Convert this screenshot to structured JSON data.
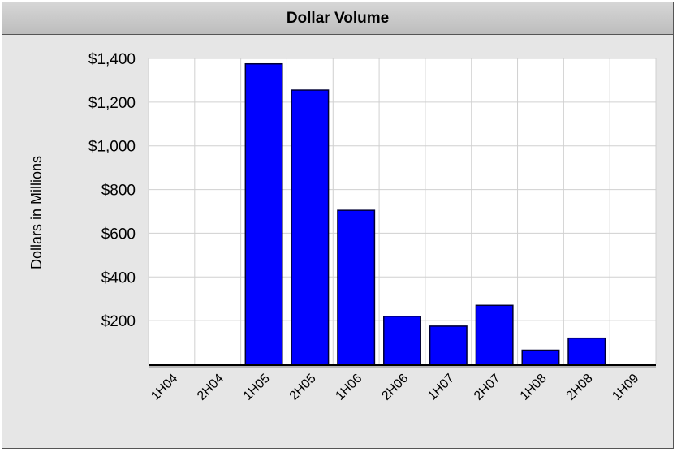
{
  "chart_data": {
    "type": "bar",
    "title": "Dollar Volume",
    "xlabel": "",
    "ylabel": "Dollars in Millions",
    "categories": [
      "1H04",
      "2H04",
      "1H05",
      "2H05",
      "1H06",
      "2H06",
      "1H07",
      "2H07",
      "1H08",
      "2H08",
      "1H09"
    ],
    "values": [
      0,
      0,
      1375,
      1255,
      705,
      220,
      175,
      270,
      65,
      120,
      0
    ],
    "ylim": [
      0,
      1400
    ],
    "yticks": [
      200,
      400,
      600,
      800,
      1000,
      1200,
      1400
    ],
    "ytick_labels": [
      "$200",
      "$400",
      "$600",
      "$800",
      "$1,000",
      "$1,200",
      "$1,400"
    ],
    "grid": true,
    "legend": "none",
    "colors": {
      "bar_fill": "#0000ff",
      "bar_stroke": "#000033",
      "plot_background": "#ffffff",
      "frame_background": "#e6e6e6",
      "gridline": "#d0d0d0"
    }
  }
}
